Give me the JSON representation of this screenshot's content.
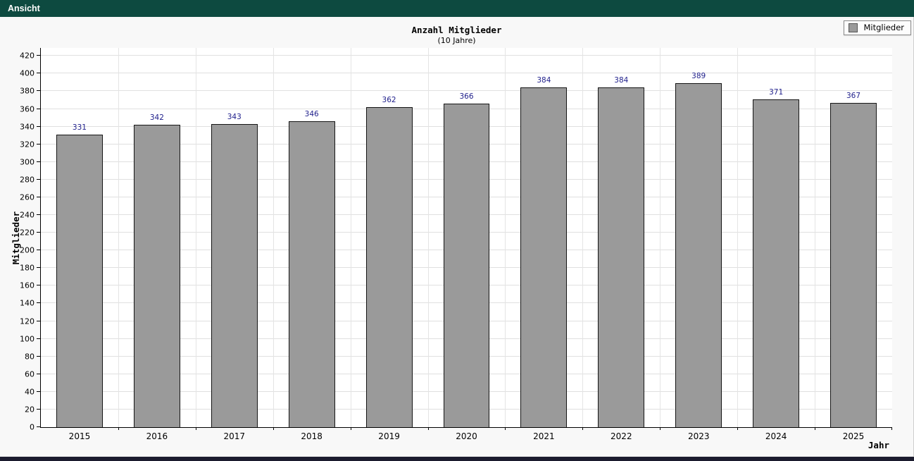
{
  "menubar": {
    "bg": "#0d4a40",
    "items": [
      {
        "label": "Ansicht"
      }
    ]
  },
  "legend": {
    "label": "Mitglieder",
    "swatch_color": "#9a9a9a"
  },
  "chart_data": {
    "type": "bar",
    "title": "Anzahl Mitglieder",
    "subtitle": "(10 Jahre)",
    "xlabel": "Jahr",
    "ylabel": "Mitglieder",
    "categories": [
      "2015",
      "2016",
      "2017",
      "2018",
      "2019",
      "2020",
      "2021",
      "2022",
      "2023",
      "2024",
      "2025"
    ],
    "series": [
      {
        "name": "Mitglieder",
        "color": "#9a9a9a",
        "values": [
          331,
          342,
          343,
          346,
          362,
          366,
          384,
          384,
          389,
          371,
          367
        ]
      }
    ],
    "ylim": [
      0,
      429
    ],
    "yticks": [
      0,
      20,
      40,
      60,
      80,
      100,
      120,
      140,
      160,
      180,
      200,
      220,
      240,
      260,
      280,
      300,
      320,
      340,
      360,
      380,
      400,
      420
    ],
    "grid": true,
    "legend_position": "top-right",
    "value_label_color": "#21218c",
    "bar_border_color": "#151515"
  },
  "colors": {
    "header_bg": "#0d4a40",
    "surface_bg": "#f8f8f8",
    "plot_bg": "#ffffff",
    "gridline": "#e0e0e0",
    "axis": "#000000",
    "bottom_strip": "#1b1b2e"
  }
}
